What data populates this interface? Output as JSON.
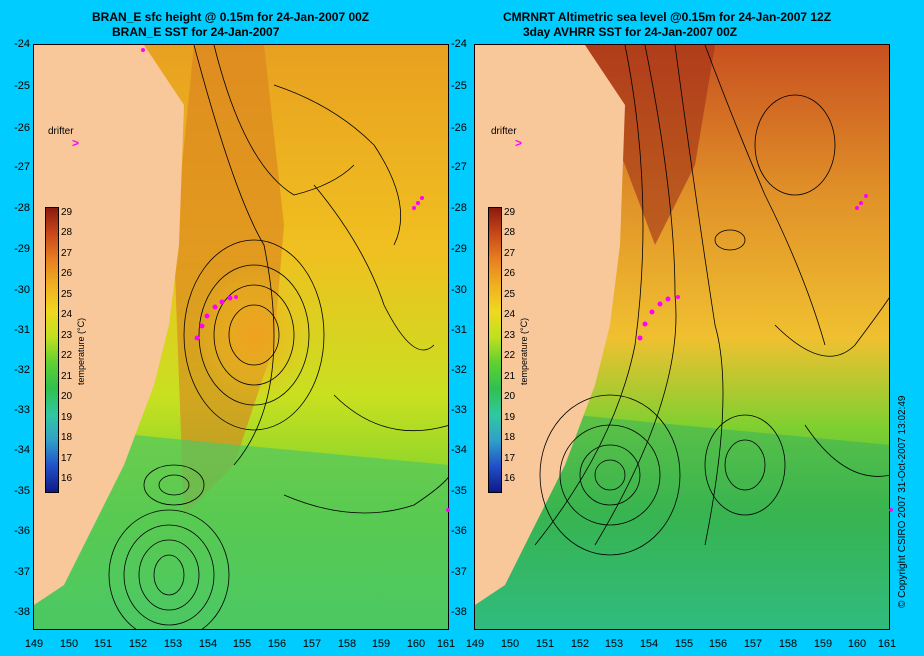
{
  "left": {
    "title_line1": "BRAN_E sfc height @ 0.15m for 24-Jan-2007 00Z",
    "title_line2": "BRAN_E SST for 24-Jan-2007"
  },
  "right": {
    "title_line1": "CMRNRT Altimetric sea level  @0.15m  for 24-Jan-2007 12Z",
    "title_line2": "3day AVHRR SST for 24-Jan-2007 00Z"
  },
  "y_axis_ticks": [
    "-24",
    "-25",
    "-26",
    "-27",
    "-28",
    "-29",
    "-30",
    "-31",
    "-32",
    "-33",
    "-34",
    "-35",
    "-36",
    "-37",
    "-38"
  ],
  "x_axis_ticks": [
    "149",
    "150",
    "151",
    "152",
    "153",
    "154",
    "155",
    "156",
    "157",
    "158",
    "159",
    "160",
    "161"
  ],
  "colorbar": {
    "title": "temperature (°C)",
    "ticks": [
      "29",
      "28",
      "27",
      "26",
      "25",
      "24",
      "23",
      "22",
      "21",
      "20",
      "19",
      "18",
      "17",
      "16"
    ]
  },
  "drifter_label": "drifter",
  "drifter_marker": ">",
  "copyright": "© Copyright CSIRO 2007   31-Oct-2007 13:02:49",
  "colors": {
    "background": "#00ccff",
    "land": "#f8c89a",
    "drifter": "#ff00ff"
  }
}
